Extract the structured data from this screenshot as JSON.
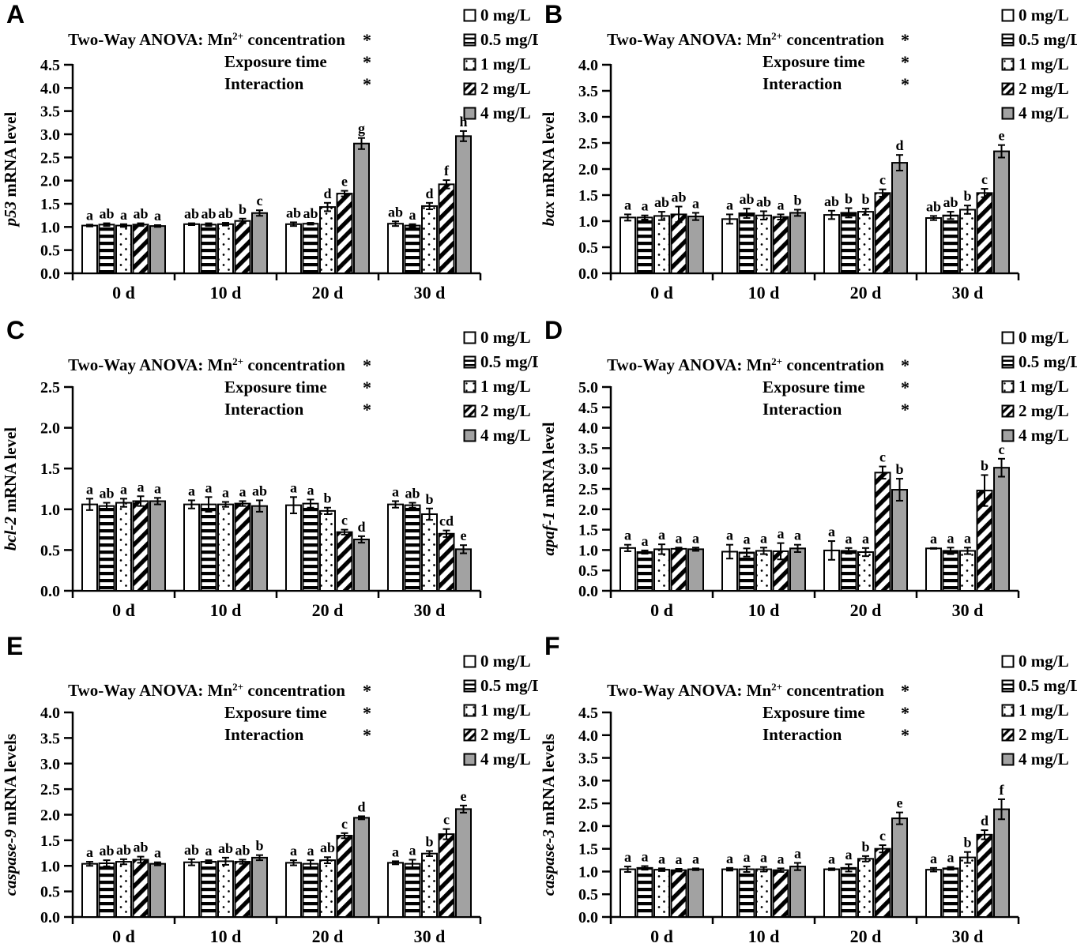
{
  "shared": {
    "legend": [
      {
        "label": "0 mg/L",
        "pattern": "plain"
      },
      {
        "label": "0.5 mg/L",
        "pattern": "hstripe"
      },
      {
        "label": "1 mg/L",
        "pattern": "dots"
      },
      {
        "label": "2 mg/L",
        "pattern": "diag"
      },
      {
        "label": "4 mg/L",
        "pattern": "gray"
      }
    ],
    "anova": {
      "line1_pre": "Two-Way ANOVA: Mn",
      "line1_sup": "2+",
      "line1_post": " concentration",
      "line2": "Exposure time",
      "line3": "Interaction",
      "star": "*"
    },
    "colors": {
      "ink": "#000000",
      "bar_gray": "#a2a2a2",
      "background": "#ffffff"
    }
  },
  "chart_data": [
    {
      "type": "bar",
      "panel": "A",
      "ylabel_gene": "p53",
      "ylabel_rest": " mRNA level",
      "ylim": [
        0,
        4.5
      ],
      "ytick_step": 0.5,
      "categories": [
        "0 d",
        "10 d",
        "20 d",
        "30 d"
      ],
      "legend_position": "top-right",
      "grid": false,
      "anova_stars": [
        "*",
        "*",
        "*"
      ],
      "series": [
        {
          "name": "0 mg/L",
          "pattern": "plain",
          "values": [
            1.03,
            1.06,
            1.06,
            1.07
          ],
          "errors": [
            0.02,
            0.02,
            0.04,
            0.05
          ],
          "letters": [
            "a",
            "ab",
            "ab",
            "ab"
          ]
        },
        {
          "name": "0.5 mg/L",
          "pattern": "hstripe",
          "values": [
            1.05,
            1.05,
            1.07,
            1.03
          ],
          "errors": [
            0.03,
            0.03,
            0.02,
            0.03
          ],
          "letters": [
            "ab",
            "ab",
            "ab",
            "a"
          ]
        },
        {
          "name": "1 mg/L",
          "pattern": "dots",
          "values": [
            1.03,
            1.06,
            1.43,
            1.45
          ],
          "errors": [
            0.03,
            0.03,
            0.09,
            0.07
          ],
          "letters": [
            "a",
            "ab",
            "d",
            "d"
          ]
        },
        {
          "name": "2 mg/L",
          "pattern": "diag",
          "values": [
            1.05,
            1.13,
            1.72,
            1.92
          ],
          "errors": [
            0.03,
            0.05,
            0.06,
            0.09
          ],
          "letters": [
            "ab",
            "b",
            "e",
            "f"
          ]
        },
        {
          "name": "4 mg/L",
          "pattern": "gray",
          "values": [
            1.02,
            1.3,
            2.8,
            2.96
          ],
          "errors": [
            0.02,
            0.06,
            0.12,
            0.11
          ],
          "letters": [
            "a",
            "c",
            "g",
            "h"
          ]
        }
      ]
    },
    {
      "type": "bar",
      "panel": "B",
      "ylabel_gene": "bax",
      "ylabel_rest": " mRNA level",
      "ylim": [
        0,
        4.0
      ],
      "ytick_step": 0.5,
      "categories": [
        "0 d",
        "10 d",
        "20 d",
        "30 d"
      ],
      "legend_position": "top-right",
      "grid": false,
      "anova_stars": [
        "*",
        "*",
        "*"
      ],
      "series": [
        {
          "name": "0 mg/L",
          "pattern": "plain",
          "values": [
            1.07,
            1.04,
            1.12,
            1.06
          ],
          "errors": [
            0.06,
            0.09,
            0.08,
            0.04
          ],
          "letters": [
            "a",
            "a",
            "ab",
            "ab"
          ]
        },
        {
          "name": "0.5 mg/L",
          "pattern": "hstripe",
          "values": [
            1.07,
            1.15,
            1.16,
            1.11
          ],
          "errors": [
            0.04,
            0.09,
            0.09,
            0.07
          ],
          "letters": [
            "a",
            "ab",
            "b",
            "ab"
          ]
        },
        {
          "name": "1 mg/L",
          "pattern": "dots",
          "values": [
            1.1,
            1.11,
            1.18,
            1.22
          ],
          "errors": [
            0.08,
            0.08,
            0.06,
            0.08
          ],
          "letters": [
            "ab",
            "ab",
            "b",
            "b"
          ]
        },
        {
          "name": "2 mg/L",
          "pattern": "diag",
          "values": [
            1.13,
            1.08,
            1.54,
            1.54
          ],
          "errors": [
            0.15,
            0.05,
            0.07,
            0.08
          ],
          "letters": [
            "ab",
            "a",
            "c",
            "c"
          ]
        },
        {
          "name": "4 mg/L",
          "pattern": "gray",
          "values": [
            1.09,
            1.16,
            2.12,
            2.34
          ],
          "errors": [
            0.07,
            0.06,
            0.15,
            0.12
          ],
          "letters": [
            "a",
            "b",
            "d",
            "e"
          ]
        }
      ]
    },
    {
      "type": "bar",
      "panel": "C",
      "ylabel_gene": "bcl-2",
      "ylabel_rest": " mRNA level",
      "ylim": [
        0,
        2.5
      ],
      "ytick_step": 0.5,
      "categories": [
        "0 d",
        "10 d",
        "20 d",
        "30 d"
      ],
      "legend_position": "top-right",
      "grid": false,
      "anova_stars": [
        "*",
        "*",
        "*"
      ],
      "series": [
        {
          "name": "0 mg/L",
          "pattern": "plain",
          "values": [
            1.06,
            1.06,
            1.05,
            1.06
          ],
          "errors": [
            0.07,
            0.05,
            0.1,
            0.04
          ],
          "letters": [
            "a",
            "a",
            "a",
            "a"
          ]
        },
        {
          "name": "0.5 mg/L",
          "pattern": "hstripe",
          "values": [
            1.04,
            1.06,
            1.07,
            1.05
          ],
          "errors": [
            0.04,
            0.09,
            0.05,
            0.03
          ],
          "letters": [
            "ab",
            "a",
            "a",
            "ab"
          ]
        },
        {
          "name": "1 mg/L",
          "pattern": "dots",
          "values": [
            1.08,
            1.06,
            0.98,
            0.94
          ],
          "errors": [
            0.05,
            0.03,
            0.04,
            0.07
          ],
          "letters": [
            "a",
            "a",
            "b",
            "b"
          ]
        },
        {
          "name": "2 mg/L",
          "pattern": "diag",
          "values": [
            1.1,
            1.07,
            0.72,
            0.7
          ],
          "errors": [
            0.06,
            0.03,
            0.03,
            0.04
          ],
          "letters": [
            "a",
            "a",
            "c",
            "cd"
          ]
        },
        {
          "name": "4 mg/L",
          "pattern": "gray",
          "values": [
            1.1,
            1.04,
            0.63,
            0.51
          ],
          "errors": [
            0.04,
            0.07,
            0.04,
            0.05
          ],
          "letters": [
            "a",
            "ab",
            "d",
            "e"
          ]
        }
      ]
    },
    {
      "type": "bar",
      "panel": "D",
      "ylabel_gene": "apaf-1",
      "ylabel_rest": " mRNA level",
      "ylim": [
        0,
        5.0
      ],
      "ytick_step": 0.5,
      "categories": [
        "0 d",
        "10 d",
        "20 d",
        "30 d"
      ],
      "legend_position": "top-right",
      "grid": false,
      "anova_stars": [
        "*",
        "*",
        "*"
      ],
      "series": [
        {
          "name": "0 mg/L",
          "pattern": "plain",
          "values": [
            1.05,
            0.96,
            0.99,
            1.04
          ],
          "errors": [
            0.08,
            0.17,
            0.23,
            0.01
          ],
          "letters": [
            "a",
            "a",
            "a",
            "a"
          ]
        },
        {
          "name": "0.5 mg/L",
          "pattern": "hstripe",
          "values": [
            0.95,
            0.94,
            0.98,
            0.98
          ],
          "errors": [
            0.04,
            0.1,
            0.07,
            0.08
          ],
          "letters": [
            "a",
            "a",
            "a",
            "a"
          ]
        },
        {
          "name": "1 mg/L",
          "pattern": "dots",
          "values": [
            1.02,
            0.98,
            0.95,
            0.98
          ],
          "errors": [
            0.12,
            0.08,
            0.1,
            0.08
          ],
          "letters": [
            "a",
            "a",
            "a",
            "a"
          ]
        },
        {
          "name": "2 mg/L",
          "pattern": "diag",
          "values": [
            1.03,
            0.97,
            2.9,
            2.46
          ],
          "errors": [
            0.03,
            0.2,
            0.15,
            0.38
          ],
          "letters": [
            "a",
            "a",
            "c",
            "b"
          ]
        },
        {
          "name": "4 mg/L",
          "pattern": "gray",
          "values": [
            1.02,
            1.04,
            2.48,
            3.02
          ],
          "errors": [
            0.04,
            0.09,
            0.27,
            0.22
          ],
          "letters": [
            "a",
            "a",
            "b",
            "c"
          ]
        }
      ]
    },
    {
      "type": "bar",
      "panel": "E",
      "ylabel_gene": "caspase-9",
      "ylabel_rest": " mRNA levels",
      "ylim": [
        0,
        4.0
      ],
      "ytick_step": 0.5,
      "categories": [
        "0 d",
        "10 d",
        "20 d",
        "30 d"
      ],
      "legend_position": "top-right",
      "grid": false,
      "anova_stars": [
        "*",
        "*",
        "*"
      ],
      "series": [
        {
          "name": "0 mg/L",
          "pattern": "plain",
          "values": [
            1.04,
            1.07,
            1.06,
            1.06
          ],
          "errors": [
            0.04,
            0.06,
            0.05,
            0.03
          ],
          "letters": [
            "a",
            "ab",
            "a",
            "a"
          ]
        },
        {
          "name": "0.5 mg/L",
          "pattern": "hstripe",
          "values": [
            1.05,
            1.08,
            1.04,
            1.04
          ],
          "errors": [
            0.06,
            0.03,
            0.07,
            0.08
          ],
          "letters": [
            "ab",
            "a",
            "a",
            "a"
          ]
        },
        {
          "name": "1 mg/L",
          "pattern": "dots",
          "values": [
            1.08,
            1.09,
            1.11,
            1.24
          ],
          "errors": [
            0.05,
            0.07,
            0.06,
            0.05
          ],
          "letters": [
            "ab",
            "ab",
            "ab",
            "b"
          ]
        },
        {
          "name": "2 mg/L",
          "pattern": "diag",
          "values": [
            1.12,
            1.08,
            1.59,
            1.62
          ],
          "errors": [
            0.06,
            0.04,
            0.05,
            0.1
          ],
          "letters": [
            "ab",
            "ab",
            "c",
            "c"
          ]
        },
        {
          "name": "4 mg/L",
          "pattern": "gray",
          "values": [
            1.04,
            1.16,
            1.94,
            2.11
          ],
          "errors": [
            0.03,
            0.05,
            0.03,
            0.07
          ],
          "letters": [
            "a",
            "b",
            "d",
            "e"
          ]
        }
      ]
    },
    {
      "type": "bar",
      "panel": "F",
      "ylabel_gene": "caspase-3",
      "ylabel_rest": " mRNA levels",
      "ylim": [
        0,
        4.5
      ],
      "ytick_step": 0.5,
      "categories": [
        "0 d",
        "10 d",
        "20 d",
        "30 d"
      ],
      "legend_position": "top-right",
      "grid": false,
      "anova_stars": [
        "*",
        "*",
        "*"
      ],
      "series": [
        {
          "name": "0 mg/L",
          "pattern": "plain",
          "values": [
            1.05,
            1.05,
            1.05,
            1.04
          ],
          "errors": [
            0.06,
            0.03,
            0.02,
            0.04
          ],
          "letters": [
            "a",
            "a",
            "a",
            "a"
          ]
        },
        {
          "name": "0.5 mg/L",
          "pattern": "hstripe",
          "values": [
            1.08,
            1.05,
            1.08,
            1.07
          ],
          "errors": [
            0.04,
            0.06,
            0.08,
            0.03
          ],
          "letters": [
            "a",
            "a",
            "a",
            "a"
          ]
        },
        {
          "name": "1 mg/L",
          "pattern": "dots",
          "values": [
            1.04,
            1.05,
            1.28,
            1.31
          ],
          "errors": [
            0.03,
            0.05,
            0.06,
            0.12
          ],
          "letters": [
            "a",
            "a",
            "b",
            "b"
          ]
        },
        {
          "name": "2 mg/L",
          "pattern": "diag",
          "values": [
            1.03,
            1.03,
            1.5,
            1.81
          ],
          "errors": [
            0.03,
            0.04,
            0.08,
            0.1
          ],
          "letters": [
            "a",
            "a",
            "c",
            "d"
          ]
        },
        {
          "name": "4 mg/L",
          "pattern": "gray",
          "values": [
            1.05,
            1.11,
            2.17,
            2.37
          ],
          "errors": [
            0.02,
            0.08,
            0.13,
            0.22
          ],
          "letters": [
            "a",
            "a",
            "e",
            "f"
          ]
        }
      ]
    }
  ]
}
